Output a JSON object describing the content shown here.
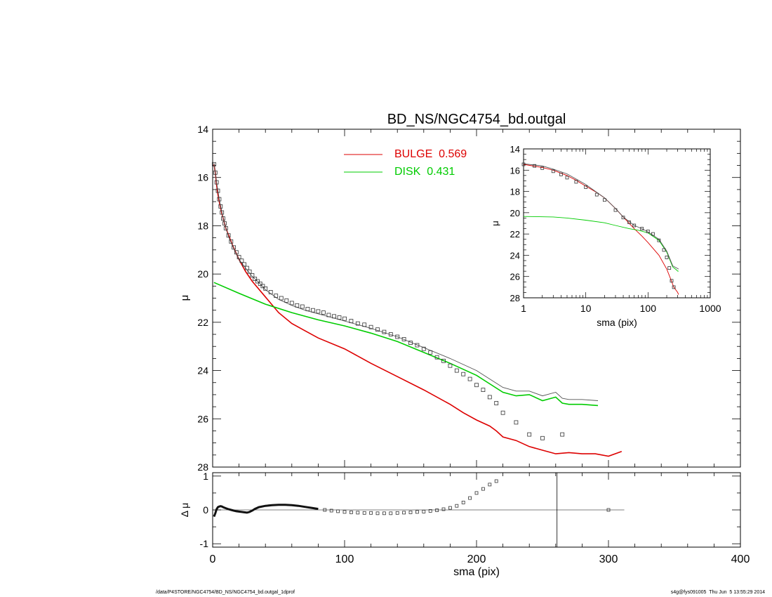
{
  "footer": {
    "left": "/data/P4STORE/NGC4754/BD_NS/NGC4754_bd.outgal_1dprof",
    "right": "s4g@fys091005  Thu Jun  5 13:55:29 2014"
  },
  "chart_data": [
    {
      "type": "line",
      "title": "BD_NS/NGC4754_bd.outgal",
      "ylabel": "μ",
      "xlim": [
        0,
        400
      ],
      "ylim": [
        28,
        14
      ],
      "xticks": [
        0,
        100,
        200,
        300,
        400
      ],
      "yticks": [
        14,
        16,
        18,
        20,
        22,
        24,
        26,
        28
      ],
      "legend": [
        {
          "name": "BULGE  0.569",
          "color": "#dd0000"
        },
        {
          "name": "DISK  0.431",
          "color": "#00cc00"
        }
      ],
      "series": [
        {
          "key": "bulge",
          "color": "#dd0000",
          "x": [
            1,
            2,
            3,
            4,
            5,
            7,
            10,
            15,
            20,
            25,
            30,
            40,
            50,
            60,
            70,
            80,
            100,
            120,
            140,
            160,
            180,
            190,
            200,
            210,
            215,
            220,
            230,
            240,
            250,
            260,
            270,
            280,
            290,
            300,
            310
          ],
          "y": [
            15.45,
            15.8,
            16.3,
            16.7,
            17.0,
            17.5,
            18.1,
            18.8,
            19.4,
            19.9,
            20.3,
            20.95,
            21.6,
            22.05,
            22.35,
            22.65,
            23.1,
            23.7,
            24.25,
            24.8,
            25.4,
            25.75,
            26.05,
            26.3,
            26.5,
            26.75,
            26.9,
            27.15,
            27.3,
            27.45,
            27.4,
            27.45,
            27.45,
            27.55,
            27.35
          ]
        },
        {
          "key": "disk",
          "color": "#00cc00",
          "x": [
            1,
            20,
            40,
            60,
            80,
            100,
            120,
            140,
            160,
            180,
            200,
            210,
            220,
            230,
            240,
            250,
            260,
            265,
            270,
            280,
            292
          ],
          "y": [
            20.35,
            20.8,
            21.25,
            21.6,
            21.9,
            22.15,
            22.45,
            22.8,
            23.25,
            23.7,
            24.2,
            24.55,
            24.9,
            25.05,
            25.0,
            25.25,
            25.1,
            25.35,
            25.4,
            25.4,
            25.45
          ]
        },
        {
          "key": "model",
          "color": "#555555",
          "x": [
            1,
            3,
            5,
            8,
            12,
            16,
            20,
            25,
            30,
            35,
            40,
            50,
            60,
            70,
            80,
            100,
            120,
            140,
            160,
            180,
            200,
            210,
            220,
            230,
            240,
            250,
            260,
            265,
            270,
            280,
            292
          ],
          "y": [
            15.4,
            16.2,
            16.9,
            17.7,
            18.45,
            18.95,
            19.4,
            19.75,
            20.1,
            20.35,
            20.65,
            21.05,
            21.3,
            21.5,
            21.65,
            21.95,
            22.25,
            22.6,
            23.05,
            23.5,
            24.0,
            24.35,
            24.7,
            24.85,
            24.85,
            25.05,
            24.9,
            25.15,
            25.2,
            25.2,
            25.25
          ]
        }
      ],
      "points": {
        "x": [
          1,
          2,
          3,
          4,
          5,
          6,
          7,
          8,
          9,
          10,
          12,
          14,
          16,
          18,
          20,
          22,
          24,
          26,
          28,
          30,
          32,
          34,
          36,
          38,
          40,
          44,
          48,
          52,
          56,
          60,
          64,
          68,
          72,
          76,
          80,
          84,
          88,
          92,
          96,
          100,
          105,
          110,
          115,
          120,
          125,
          130,
          135,
          140,
          145,
          150,
          155,
          160,
          165,
          170,
          175,
          180,
          185,
          190,
          195,
          200,
          205,
          210,
          215,
          220,
          230,
          240,
          250,
          265
        ],
        "y": [
          15.45,
          15.8,
          16.2,
          16.55,
          16.9,
          17.2,
          17.45,
          17.7,
          17.9,
          18.1,
          18.4,
          18.65,
          18.9,
          19.1,
          19.3,
          19.45,
          19.6,
          19.75,
          19.9,
          20.05,
          20.2,
          20.3,
          20.4,
          20.5,
          20.6,
          20.75,
          20.9,
          21.0,
          21.1,
          21.2,
          21.3,
          21.35,
          21.45,
          21.5,
          21.55,
          21.6,
          21.7,
          21.75,
          21.8,
          21.85,
          21.95,
          22.05,
          22.1,
          22.2,
          22.3,
          22.4,
          22.5,
          22.6,
          22.7,
          22.85,
          22.95,
          23.1,
          23.25,
          23.45,
          23.6,
          23.8,
          24.0,
          24.15,
          24.35,
          24.6,
          24.8,
          25.1,
          25.35,
          25.75,
          26.15,
          26.65,
          26.8,
          26.65
        ]
      }
    },
    {
      "type": "line",
      "xlabel": "sma (pix)",
      "ylabel": "μ",
      "xscale": "log",
      "xlim": [
        1,
        1000
      ],
      "ylim": [
        28,
        14
      ],
      "xticks": [
        1,
        10,
        100,
        1000
      ],
      "yticks": [
        14,
        16,
        18,
        20,
        22,
        24,
        26,
        28
      ],
      "series": [
        {
          "key": "bulge",
          "color": "#dd0000",
          "x": [
            1,
            2,
            3,
            5,
            7,
            10,
            15,
            20,
            30,
            40,
            60,
            80,
            100,
            150,
            200,
            230,
            260,
            300,
            310
          ],
          "y": [
            15.45,
            15.75,
            16.0,
            16.5,
            16.95,
            17.5,
            18.1,
            18.6,
            19.6,
            20.4,
            21.5,
            22.2,
            22.8,
            24.0,
            25.3,
            26.2,
            27.0,
            27.5,
            27.7
          ]
        },
        {
          "key": "disk",
          "color": "#00cc00",
          "x": [
            1,
            3,
            5,
            10,
            20,
            30,
            50,
            70,
            100,
            150,
            200,
            250,
            290,
            300,
            310
          ],
          "y": [
            20.35,
            20.4,
            20.5,
            20.7,
            20.95,
            21.2,
            21.5,
            21.65,
            21.9,
            22.6,
            23.7,
            25.1,
            25.4,
            25.5,
            25.5
          ]
        },
        {
          "key": "model",
          "color": "#555555",
          "x": [
            1,
            2,
            3,
            5,
            10,
            20,
            30,
            40,
            60,
            80,
            100,
            150,
            200,
            250,
            290,
            310
          ],
          "y": [
            15.4,
            15.6,
            15.9,
            16.35,
            17.35,
            18.6,
            19.6,
            20.4,
            21.2,
            21.5,
            21.8,
            22.5,
            23.6,
            25.0,
            25.2,
            25.3
          ]
        }
      ],
      "points": {
        "x": [
          1,
          1.5,
          2,
          3,
          4,
          5,
          7,
          10,
          15,
          20,
          30,
          40,
          50,
          60,
          80,
          100,
          120,
          150,
          180,
          200,
          220,
          240,
          260
        ],
        "y": [
          15.45,
          15.6,
          15.8,
          16.1,
          16.4,
          16.7,
          17.1,
          17.6,
          18.3,
          18.8,
          19.75,
          20.45,
          20.9,
          21.2,
          21.5,
          21.75,
          22.0,
          22.6,
          23.5,
          24.2,
          25.2,
          26.4,
          27.0
        ]
      }
    },
    {
      "type": "scatter",
      "xlabel": "sma (pix)",
      "ylabel": "Δ μ",
      "xlim": [
        0,
        400
      ],
      "ylim": [
        -1.1,
        1.1
      ],
      "xticks": [
        0,
        100,
        200,
        300,
        400
      ],
      "yticks": [
        -1,
        0,
        1
      ],
      "zero_line_x": [
        0,
        312
      ],
      "vertical_line_x": 261,
      "residual_curve": {
        "x": [
          1,
          2,
          3,
          4,
          5,
          6,
          7,
          8,
          10,
          12,
          14,
          16,
          18,
          20,
          22,
          24,
          26,
          28,
          30,
          32,
          35,
          40,
          45,
          50,
          55,
          60,
          65,
          70,
          75,
          80
        ],
        "y": [
          -0.2,
          -0.1,
          0.02,
          0.08,
          0.1,
          0.11,
          0.1,
          0.08,
          0.05,
          0.02,
          0.0,
          -0.02,
          -0.04,
          -0.05,
          -0.06,
          -0.07,
          -0.08,
          -0.06,
          -0.02,
          0.03,
          0.08,
          0.12,
          0.14,
          0.15,
          0.15,
          0.14,
          0.12,
          0.09,
          0.06,
          0.03
        ]
      },
      "points": {
        "x": [
          85,
          90,
          95,
          100,
          105,
          110,
          115,
          120,
          125,
          130,
          135,
          140,
          145,
          150,
          155,
          160,
          165,
          170,
          175,
          180,
          185,
          190,
          195,
          200,
          205,
          210,
          215,
          300
        ],
        "y": [
          0.0,
          -0.02,
          -0.04,
          -0.06,
          -0.07,
          -0.08,
          -0.09,
          -0.09,
          -0.1,
          -0.1,
          -0.1,
          -0.09,
          -0.08,
          -0.07,
          -0.06,
          -0.05,
          -0.03,
          -0.01,
          0.02,
          0.06,
          0.12,
          0.22,
          0.35,
          0.5,
          0.62,
          0.75,
          0.85,
          0.0
        ]
      }
    }
  ]
}
